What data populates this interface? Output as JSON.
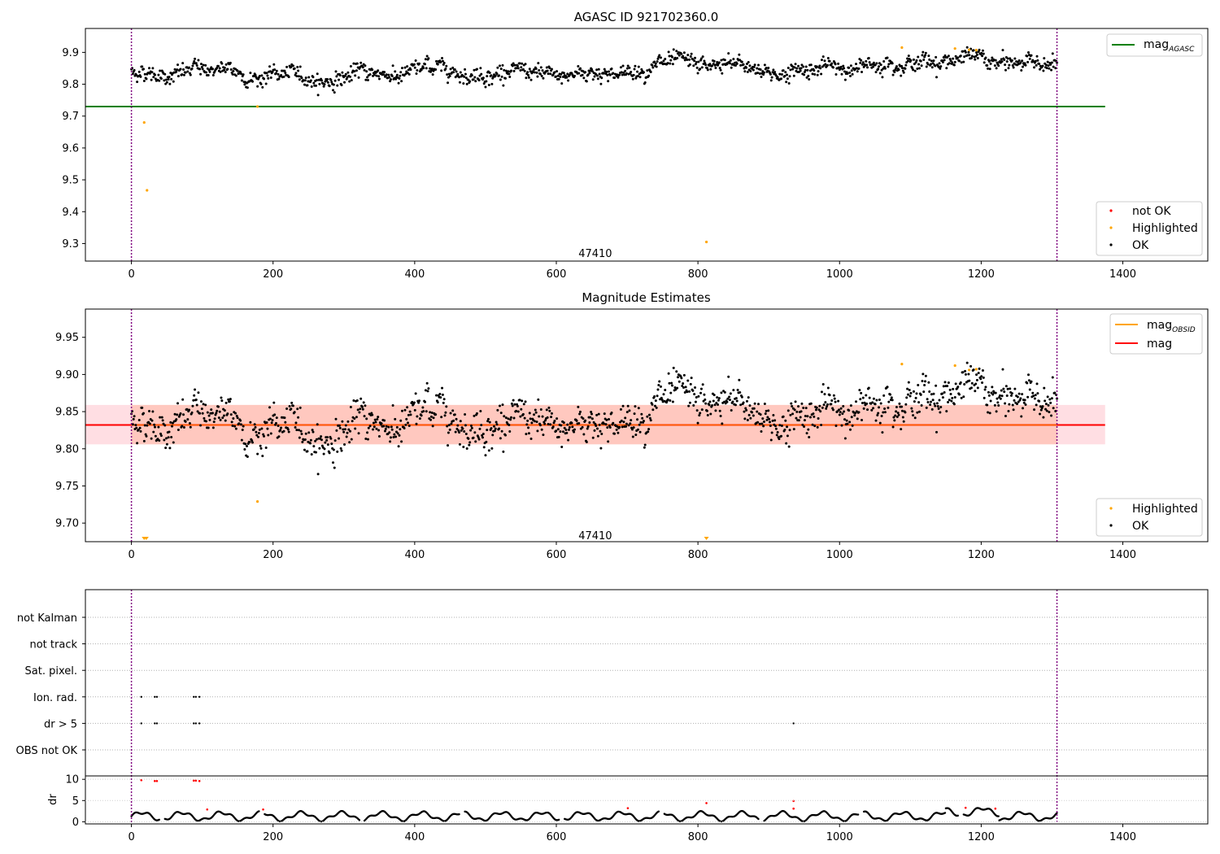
{
  "colors": {
    "ok": "#000000",
    "highlighted": "#ffa500",
    "not_ok": "#ff0000",
    "agasc_line": "#008000",
    "mag_line": "#ff0000",
    "obsid_line": "#ffa500",
    "band": "#ffb6c1",
    "band_inner": "#ffa07a",
    "obs_boundary": "#800080"
  },
  "chart_data": [
    {
      "type": "scatter",
      "title": "AGASC ID 921702360.0",
      "xlim": [
        -65,
        1520
      ],
      "ylim": [
        9.245,
        9.975
      ],
      "x_ticks": [
        0,
        200,
        400,
        600,
        800,
        1000,
        1200,
        1400
      ],
      "y_ticks": [
        9.3,
        9.4,
        9.5,
        9.6,
        9.7,
        9.8,
        9.9
      ],
      "y_tick_labels": [
        "9.3",
        "9.4",
        "9.5",
        "9.6",
        "9.7",
        "9.8",
        "9.9"
      ],
      "obs_boundaries": [
        0,
        1307
      ],
      "obsid_annotation": {
        "text": "47410",
        "x": 655,
        "y": 9.27
      },
      "agasc_mag": 9.73,
      "agasc_mag_xrange": [
        -65,
        1375
      ],
      "ok_series": {
        "x_start": 0,
        "x_end": 1307,
        "n": 1300,
        "start": 9.83,
        "end": 9.88
      },
      "highlighted_points": [
        {
          "x": 18,
          "y": 9.68
        },
        {
          "x": 22,
          "y": 9.467
        },
        {
          "x": 178,
          "y": 9.73
        },
        {
          "x": 812,
          "y": 9.305
        },
        {
          "x": 1088,
          "y": 9.915
        },
        {
          "x": 1163,
          "y": 9.912
        },
        {
          "x": 1183,
          "y": 9.908
        },
        {
          "x": 1193,
          "y": 9.907
        }
      ],
      "legend_top": [
        {
          "label_main": "mag",
          "label_sub": "AGASC",
          "color": "#008000",
          "kind": "line"
        }
      ],
      "legend_bottom": [
        {
          "label": "not OK",
          "color": "#ff0000",
          "kind": "dot"
        },
        {
          "label": "Highlighted",
          "color": "#ffa500",
          "kind": "dot"
        },
        {
          "label": "OK",
          "color": "#000000",
          "kind": "dot"
        }
      ]
    },
    {
      "type": "scatter",
      "title": "Magnitude Estimates",
      "xlim": [
        -65,
        1520
      ],
      "ylim": [
        9.675,
        9.988
      ],
      "x_ticks": [
        0,
        200,
        400,
        600,
        800,
        1000,
        1200,
        1400
      ],
      "y_ticks": [
        9.7,
        9.75,
        9.8,
        9.85,
        9.9,
        9.95
      ],
      "y_tick_labels": [
        "9.70",
        "9.75",
        "9.80",
        "9.85",
        "9.90",
        "9.95"
      ],
      "obs_boundaries": [
        0,
        1307
      ],
      "obsid_annotation": {
        "text": "47410",
        "x": 655,
        "y": 9.684
      },
      "mag": 9.832,
      "band_outer": [
        9.806,
        9.859
      ],
      "band_outer_xrange": [
        -65,
        1375
      ],
      "band_inner_xrange": [
        0,
        1307
      ],
      "ok_series": {
        "x_start": 0,
        "x_end": 1307,
        "n": 1300,
        "start": 9.83,
        "end": 9.88
      },
      "highlighted_points": [
        {
          "x": 178,
          "y": 9.729
        },
        {
          "x": 1088,
          "y": 9.914
        },
        {
          "x": 1163,
          "y": 9.912
        },
        {
          "x": 1183,
          "y": 9.906
        },
        {
          "x": 1193,
          "y": 9.907
        }
      ],
      "offscale_markers_x": [
        18,
        21,
        812
      ],
      "legend_top": [
        {
          "label_main": "mag",
          "label_sub": "OBSID",
          "color": "#ffa500",
          "kind": "line"
        },
        {
          "label_main": "mag",
          "label_sub": "",
          "color": "#ff0000",
          "kind": "line"
        }
      ],
      "legend_bottom": [
        {
          "label": "Highlighted",
          "color": "#ffa500",
          "kind": "dot"
        },
        {
          "label": "OK",
          "color": "#000000",
          "kind": "dot"
        }
      ]
    },
    {
      "type": "scatter",
      "title": "",
      "xlim": [
        -65,
        1520
      ],
      "x_ticks": [
        0,
        200,
        400,
        600,
        800,
        1000,
        1200,
        1400
      ],
      "obs_boundaries": [
        0,
        1307
      ],
      "flag_categories": [
        "not Kalman",
        "not track",
        "Sat. pixel.",
        "Ion. rad.",
        "dr > 5",
        "OBS not OK"
      ],
      "flag_points": [
        {
          "category": "Ion. rad.",
          "x": [
            14,
            33,
            36,
            88,
            91,
            96
          ]
        },
        {
          "category": "dr > 5",
          "x": [
            14,
            33,
            36,
            88,
            91,
            96,
            935
          ]
        }
      ],
      "dr_ylabel": "dr",
      "dr_ylim": [
        -0.5,
        10.8
      ],
      "dr_y_ticks": [
        0,
        5,
        10
      ],
      "dr_red_points": [
        {
          "x": 14,
          "y": 9.8
        },
        {
          "x": 33,
          "y": 9.6
        },
        {
          "x": 36,
          "y": 9.6
        },
        {
          "x": 88,
          "y": 9.7
        },
        {
          "x": 91,
          "y": 9.7
        },
        {
          "x": 96,
          "y": 9.6
        },
        {
          "x": 107,
          "y": 2.9
        },
        {
          "x": 186,
          "y": 2.9
        },
        {
          "x": 701,
          "y": 3.2
        },
        {
          "x": 812,
          "y": 4.4
        },
        {
          "x": 935,
          "y": 4.9
        },
        {
          "x": 935,
          "y": 3.1
        },
        {
          "x": 1178,
          "y": 3.3
        },
        {
          "x": 1220,
          "y": 3.1
        }
      ]
    }
  ]
}
